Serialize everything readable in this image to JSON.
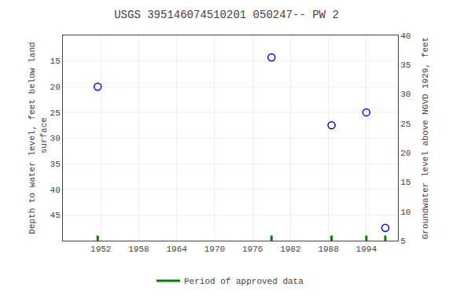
{
  "chart_data": {
    "type": "scatter",
    "title": "USGS 395146074510201 050247-- PW 2",
    "series": [
      {
        "type": "scatter",
        "x": [
          1951.5,
          1979,
          1988.5,
          1994,
          1997
        ],
        "values": [
          20,
          14.3,
          27.5,
          25,
          47.5
        ],
        "color": "blue",
        "marker": "open circle"
      },
      {
        "type": "rug",
        "name": "Period of approved data",
        "x": [
          1951.5,
          1979,
          1988.5,
          1994,
          1997
        ],
        "color": "#008000"
      }
    ],
    "xlim": [
      1946,
      1999
    ],
    "xticks": [
      1952,
      1958,
      1964,
      1970,
      1976,
      1982,
      1988,
      1994
    ],
    "ylim": [
      50,
      10
    ],
    "yticks": [
      15,
      20,
      25,
      30,
      35,
      40,
      45
    ],
    "y2lim": [
      5,
      40
    ],
    "y2ticks": [
      5,
      10,
      15,
      20,
      25,
      30,
      35,
      40
    ],
    "ylabel": "Depth to water level, feet below land\n surface",
    "y2label": "Groundwater level above NGVD 1929, feet",
    "grid": true,
    "legend": "bottom"
  }
}
